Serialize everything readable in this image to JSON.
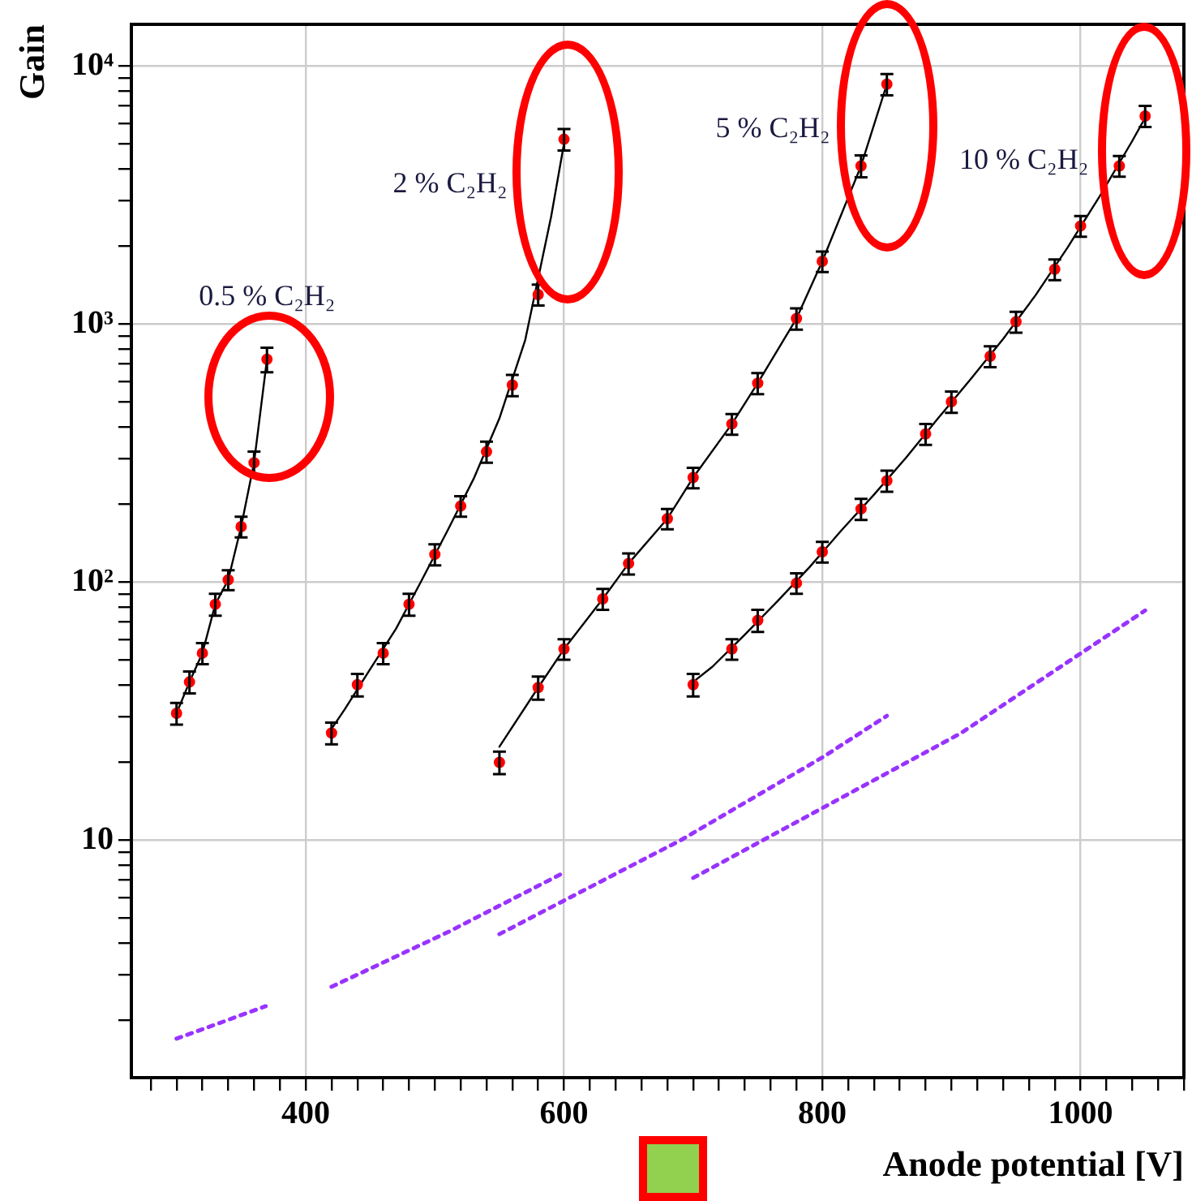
{
  "chart_data": {
    "type": "scatter",
    "xlabel": "Anode potential [V]",
    "ylabel": "Gain",
    "log": "y",
    "grid": true,
    "legend": false,
    "xlim": [
      265,
      1080
    ],
    "ylim": [
      1.2,
      14500
    ],
    "xticks": [
      {
        "value": 280,
        "label": null
      },
      {
        "value": 300,
        "label": null
      },
      {
        "value": 320,
        "label": null
      },
      {
        "value": 340,
        "label": null
      },
      {
        "value": 360,
        "label": null
      },
      {
        "value": 380,
        "label": null
      },
      400,
      {
        "value": 420,
        "label": null
      },
      {
        "value": 440,
        "label": null
      },
      {
        "value": 460,
        "label": null
      },
      {
        "value": 480,
        "label": null
      },
      {
        "value": 500,
        "label": null
      },
      {
        "value": 520,
        "label": null
      },
      {
        "value": 540,
        "label": null
      },
      {
        "value": 560,
        "label": null
      },
      {
        "value": 580,
        "label": null
      },
      600,
      {
        "value": 620,
        "label": null
      },
      {
        "value": 640,
        "label": null
      },
      {
        "value": 660,
        "label": null
      },
      {
        "value": 680,
        "label": null
      },
      {
        "value": 700,
        "label": null
      },
      {
        "value": 720,
        "label": null
      },
      {
        "value": 740,
        "label": null
      },
      {
        "value": 760,
        "label": null
      },
      {
        "value": 780,
        "label": null
      },
      800,
      {
        "value": 820,
        "label": null
      },
      {
        "value": 840,
        "label": null
      },
      {
        "value": 860,
        "label": null
      },
      {
        "value": 880,
        "label": null
      },
      {
        "value": 900,
        "label": null
      },
      {
        "value": 920,
        "label": null
      },
      {
        "value": 940,
        "label": null
      },
      {
        "value": 960,
        "label": null
      },
      {
        "value": 980,
        "label": null
      },
      1000,
      {
        "value": 1020,
        "label": null
      },
      {
        "value": 1040,
        "label": null
      },
      {
        "value": 1060,
        "label": null
      },
      {
        "value": 1080,
        "label": null
      }
    ],
    "yticks": [
      {
        "value": 2,
        "label": null
      },
      {
        "value": 3,
        "label": null
      },
      {
        "value": 4,
        "label": null
      },
      {
        "value": 5,
        "label": null
      },
      {
        "value": 6,
        "label": null
      },
      {
        "value": 7,
        "label": null
      },
      {
        "value": 8,
        "label": null
      },
      {
        "value": 9,
        "label": null
      },
      10,
      {
        "value": 20,
        "label": null
      },
      {
        "value": 30,
        "label": null
      },
      {
        "value": 40,
        "label": null
      },
      {
        "value": 50,
        "label": null
      },
      {
        "value": 60,
        "label": null
      },
      {
        "value": 70,
        "label": null
      },
      {
        "value": 80,
        "label": null
      },
      {
        "value": 90,
        "label": null
      },
      {
        "value": 100,
        "label": "10²"
      },
      {
        "value": 200,
        "label": null
      },
      {
        "value": 300,
        "label": null
      },
      {
        "value": 400,
        "label": null
      },
      {
        "value": 500,
        "label": null
      },
      {
        "value": 600,
        "label": null
      },
      {
        "value": 700,
        "label": null
      },
      {
        "value": 800,
        "label": null
      },
      {
        "value": 900,
        "label": null
      },
      {
        "value": 1000,
        "label": "10³"
      },
      {
        "value": 2000,
        "label": null
      },
      {
        "value": 3000,
        "label": null
      },
      {
        "value": 4000,
        "label": null
      },
      {
        "value": 5000,
        "label": null
      },
      {
        "value": 6000,
        "label": null
      },
      {
        "value": 7000,
        "label": null
      },
      {
        "value": 8000,
        "label": null
      },
      {
        "value": 9000,
        "label": null
      },
      {
        "value": 10000,
        "label": "10⁴"
      }
    ],
    "series": [
      {
        "name": "0.5 % C₂H₂",
        "marker": "circle",
        "color": "#ff0000",
        "x": [
          300,
          310,
          320,
          330,
          340,
          350,
          360,
          370
        ],
        "values": [
          31,
          41,
          53,
          82,
          102,
          164,
          290,
          730
        ],
        "errors": [
          3,
          4,
          5,
          8,
          9,
          15,
          30,
          80
        ]
      },
      {
        "name": "2 % C₂H₂",
        "marker": "circle",
        "color": "#ff0000",
        "x": [
          420,
          440,
          460,
          480,
          500,
          520,
          540,
          560,
          580,
          600
        ],
        "values": [
          26,
          40,
          53,
          82,
          128,
          197,
          320,
          580,
          1300,
          5200
        ],
        "errors": [
          2.5,
          4,
          5,
          8,
          12,
          18,
          30,
          55,
          120,
          500
        ]
      },
      {
        "name": "5 % C₂H₂",
        "marker": "circle",
        "color": "#ff0000",
        "x": [
          550,
          580,
          600,
          630,
          650,
          680,
          700,
          730,
          750,
          780,
          800,
          830,
          850
        ],
        "values": [
          20,
          39,
          55,
          86,
          118,
          176,
          254,
          410,
          590,
          1050,
          1750,
          4100,
          8500
        ],
        "errors": [
          2,
          4,
          5,
          8,
          11,
          16,
          23,
          38,
          55,
          100,
          160,
          400,
          800
        ]
      },
      {
        "name": "10 % C₂H₂",
        "marker": "circle",
        "color": "#ff0000",
        "x": [
          700,
          730,
          750,
          780,
          800,
          830,
          850,
          880,
          900,
          930,
          950,
          980,
          1000,
          1030,
          1050
        ],
        "values": [
          40,
          55,
          71,
          99,
          131,
          192,
          247,
          375,
          500,
          750,
          1020,
          1630,
          2400,
          4100,
          6400
        ],
        "errors": [
          4,
          5,
          7,
          9,
          12,
          18,
          23,
          35,
          47,
          70,
          95,
          150,
          220,
          380,
          600
        ]
      },
      {
        "type": "line",
        "line_style": "solid",
        "color": "#000000",
        "x": [
          300,
          310,
          320,
          330,
          340,
          350,
          360,
          370
        ],
        "values": [
          31,
          41,
          53,
          82,
          102,
          164,
          290,
          730
        ]
      },
      {
        "type": "line",
        "line_style": "solid",
        "color": "#000000",
        "x": [
          420,
          430,
          450,
          470,
          490,
          510,
          530,
          550,
          570,
          590,
          600
        ],
        "values": [
          27,
          32,
          46,
          66,
          102,
          159,
          251,
          431,
          868,
          2600,
          5000
        ]
      },
      {
        "type": "line",
        "line_style": "solid",
        "color": "#000000",
        "x": [
          550,
          580,
          600,
          630,
          650,
          680,
          700,
          730,
          750,
          780,
          800,
          830,
          850
        ],
        "values": [
          23,
          39,
          55,
          86,
          118,
          176,
          254,
          410,
          590,
          1050,
          1750,
          4100,
          8500
        ]
      },
      {
        "type": "line",
        "line_style": "solid",
        "color": "#000000",
        "x": [
          700,
          715,
          740,
          765,
          790,
          815,
          840,
          865,
          890,
          915,
          940,
          965,
          990,
          1015,
          1040,
          1050
        ],
        "values": [
          41,
          47,
          62.5,
          84,
          114,
          159,
          218,
          304,
          433,
          612,
          875,
          1290,
          1980,
          3140,
          5120,
          6300
        ]
      },
      {
        "type": "line",
        "line_style": "dotted",
        "color": "#9933ff",
        "x": [
          300,
          369
        ],
        "values": [
          1.7,
          2.27
        ]
      },
      {
        "type": "line",
        "line_style": "dotted",
        "color": "#9933ff",
        "x": [
          420,
          511,
          600
        ],
        "values": [
          2.7,
          4.42,
          7.48
        ]
      },
      {
        "type": "line",
        "line_style": "dotted",
        "color": "#9933ff",
        "x": [
          550,
          640,
          690,
          800,
          850
        ],
        "values": [
          4.32,
          7.4,
          9.96,
          20.9,
          30.3
        ]
      },
      {
        "type": "line",
        "line_style": "dotted",
        "color": "#9933ff",
        "x": [
          700,
          800,
          907,
          1050
        ],
        "values": [
          7.13,
          13.3,
          25.9,
          77.6
        ]
      }
    ]
  }
}
